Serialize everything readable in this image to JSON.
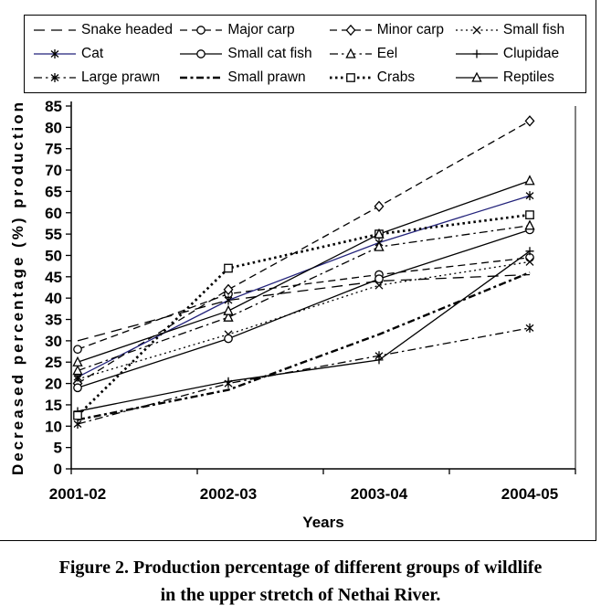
{
  "figure": {
    "caption_line1": "Figure 2. Production percentage of different groups of wildlife",
    "caption_line2": "in the upper stretch of Nethai River."
  },
  "chart_data": {
    "type": "line",
    "title": "",
    "xlabel": "Years",
    "ylabel": "Decreased percentage (%) production",
    "categories": [
      "2001-02",
      "2002-03",
      "2003-04",
      "2004-05"
    ],
    "ylim": [
      0,
      85
    ],
    "ytick_step": 5,
    "grid": false,
    "legend_position": "top-boxed",
    "axis_color": "#000000",
    "series": [
      {
        "name": "Snake headed",
        "values": [
          30,
          39.5,
          44,
          45.5
        ],
        "line": "longdash",
        "marker": "none",
        "color": "#000000"
      },
      {
        "name": "Major carp",
        "values": [
          28,
          41,
          45.5,
          49.5
        ],
        "line": "dash",
        "marker": "circle",
        "color": "#000000"
      },
      {
        "name": "Minor carp",
        "values": [
          20,
          42,
          61.5,
          81.5
        ],
        "line": "dash",
        "marker": "diamond",
        "color": "#000000"
      },
      {
        "name": "Small fish",
        "values": [
          21,
          31.5,
          43,
          48.5
        ],
        "line": "dot",
        "marker": "x",
        "color": "#000000"
      },
      {
        "name": "Cat",
        "values": [
          21.5,
          39.5,
          53,
          64
        ],
        "line": "solid",
        "marker": "asterisk",
        "color": "#22227a"
      },
      {
        "name": "Small cat fish",
        "values": [
          19,
          30.5,
          44.5,
          56
        ],
        "line": "solid",
        "marker": "circle",
        "color": "#000000"
      },
      {
        "name": "Eel",
        "values": [
          23,
          35.5,
          52,
          57
        ],
        "line": "dashdot",
        "marker": "triangle",
        "color": "#000000"
      },
      {
        "name": "Clupidae",
        "values": [
          13.5,
          20.5,
          25.5,
          51
        ],
        "line": "solid",
        "marker": "plus",
        "color": "#000000"
      },
      {
        "name": "Large prawn",
        "values": [
          10.5,
          20,
          26.5,
          33
        ],
        "line": "dashdot",
        "marker": "asterisk",
        "color": "#000000"
      },
      {
        "name": "Small prawn",
        "values": [
          11.5,
          18.5,
          31.5,
          46
        ],
        "line": "bolddashdot",
        "marker": "none",
        "color": "#000000"
      },
      {
        "name": "Crabs",
        "values": [
          12.5,
          47,
          55,
          59.5
        ],
        "line": "bolddot",
        "marker": "square",
        "color": "#000000"
      },
      {
        "name": "Reptiles",
        "values": [
          25,
          37,
          55,
          67.5
        ],
        "line": "solid",
        "marker": "triangle",
        "color": "#000000"
      }
    ]
  }
}
